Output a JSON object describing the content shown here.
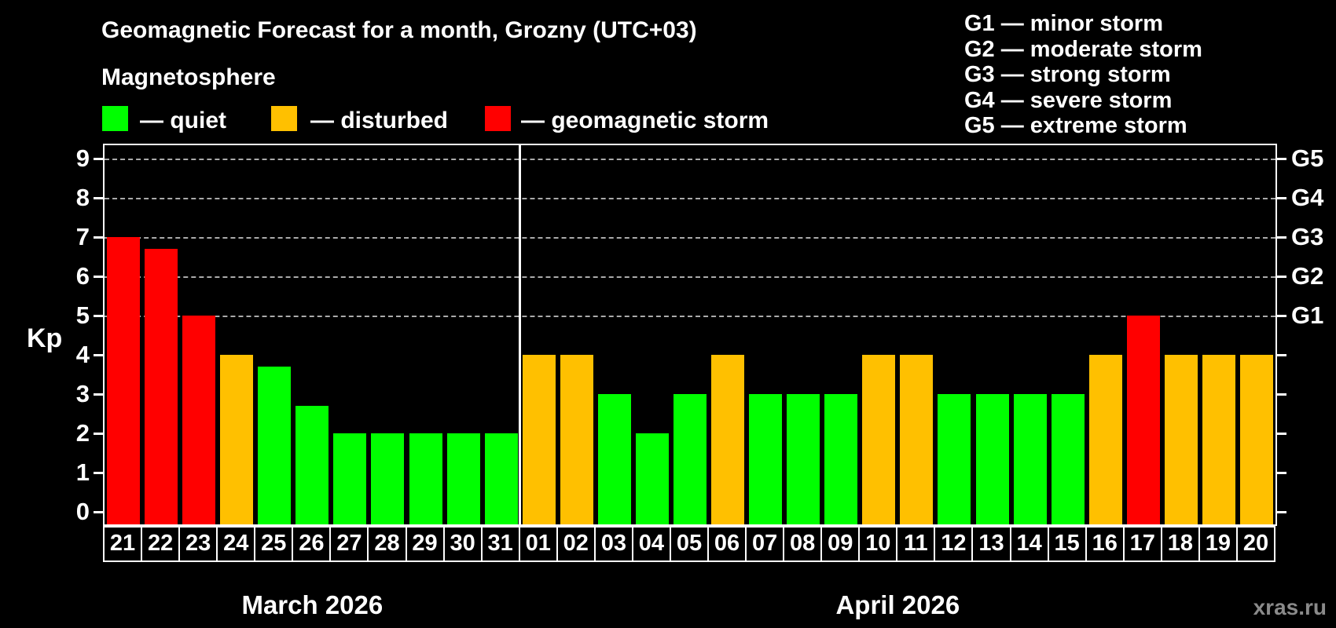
{
  "title": "Geomagnetic Forecast for a month, Grozny (UTC+03)",
  "subtitle": "Magnetosphere",
  "legend": {
    "items": [
      {
        "key": "quiet",
        "label": "— quiet"
      },
      {
        "key": "disturbed",
        "label": "— disturbed"
      },
      {
        "key": "storm",
        "label": "— geomagnetic storm"
      }
    ]
  },
  "g_scale_legend": [
    "G1 — minor storm",
    "G2 — moderate storm",
    "G3 — strong storm",
    "G4 — severe storm",
    "G5 — extreme storm"
  ],
  "watermark": "xras.ru",
  "colors": {
    "quiet": "#00ff00",
    "disturbed": "#ffc000",
    "storm": "#ff0000",
    "background": "#000000",
    "axis": "#ffffff",
    "grid": "#c8c8c8",
    "watermark": "#8a8a8a"
  },
  "chart_data": {
    "type": "bar",
    "title": "Geomagnetic Forecast for a month, Grozny (UTC+03)",
    "ylabel": "Kp",
    "ylim": [
      0,
      9.5
    ],
    "y_ticks": [
      0,
      1,
      2,
      3,
      4,
      5,
      6,
      7,
      8,
      9
    ],
    "gridlines_at_kp": [
      5,
      6,
      7,
      8,
      9
    ],
    "grid": "dashed horizontal at storm levels only",
    "legend_position": "top-left",
    "right_axis_labels": [
      {
        "kp": 5,
        "label": "G1"
      },
      {
        "kp": 6,
        "label": "G2"
      },
      {
        "kp": 7,
        "label": "G3"
      },
      {
        "kp": 8,
        "label": "G4"
      },
      {
        "kp": 9,
        "label": "G5"
      }
    ],
    "months": [
      {
        "label": "March 2026",
        "day_count": 11
      },
      {
        "label": "April 2026",
        "day_count": 20
      }
    ],
    "points": [
      {
        "day": "21",
        "month": "March 2026",
        "kp": 7.0,
        "condition": "storm"
      },
      {
        "day": "22",
        "month": "March 2026",
        "kp": 6.7,
        "condition": "storm"
      },
      {
        "day": "23",
        "month": "March 2026",
        "kp": 5.0,
        "condition": "storm"
      },
      {
        "day": "24",
        "month": "March 2026",
        "kp": 4.0,
        "condition": "disturbed"
      },
      {
        "day": "25",
        "month": "March 2026",
        "kp": 3.7,
        "condition": "quiet"
      },
      {
        "day": "26",
        "month": "March 2026",
        "kp": 2.7,
        "condition": "quiet"
      },
      {
        "day": "27",
        "month": "March 2026",
        "kp": 2.0,
        "condition": "quiet"
      },
      {
        "day": "28",
        "month": "March 2026",
        "kp": 2.0,
        "condition": "quiet"
      },
      {
        "day": "29",
        "month": "March 2026",
        "kp": 2.0,
        "condition": "quiet"
      },
      {
        "day": "30",
        "month": "March 2026",
        "kp": 2.0,
        "condition": "quiet"
      },
      {
        "day": "31",
        "month": "March 2026",
        "kp": 2.0,
        "condition": "quiet"
      },
      {
        "day": "01",
        "month": "April 2026",
        "kp": 4.0,
        "condition": "disturbed"
      },
      {
        "day": "02",
        "month": "April 2026",
        "kp": 4.0,
        "condition": "disturbed"
      },
      {
        "day": "03",
        "month": "April 2026",
        "kp": 3.0,
        "condition": "quiet"
      },
      {
        "day": "04",
        "month": "April 2026",
        "kp": 2.0,
        "condition": "quiet"
      },
      {
        "day": "05",
        "month": "April 2026",
        "kp": 3.0,
        "condition": "quiet"
      },
      {
        "day": "06",
        "month": "April 2026",
        "kp": 4.0,
        "condition": "disturbed"
      },
      {
        "day": "07",
        "month": "April 2026",
        "kp": 3.0,
        "condition": "quiet"
      },
      {
        "day": "08",
        "month": "April 2026",
        "kp": 3.0,
        "condition": "quiet"
      },
      {
        "day": "09",
        "month": "April 2026",
        "kp": 3.0,
        "condition": "quiet"
      },
      {
        "day": "10",
        "month": "April 2026",
        "kp": 4.0,
        "condition": "disturbed"
      },
      {
        "day": "11",
        "month": "April 2026",
        "kp": 4.0,
        "condition": "disturbed"
      },
      {
        "day": "12",
        "month": "April 2026",
        "kp": 3.0,
        "condition": "quiet"
      },
      {
        "day": "13",
        "month": "April 2026",
        "kp": 3.0,
        "condition": "quiet"
      },
      {
        "day": "14",
        "month": "April 2026",
        "kp": 3.0,
        "condition": "quiet"
      },
      {
        "day": "15",
        "month": "April 2026",
        "kp": 3.0,
        "condition": "quiet"
      },
      {
        "day": "16",
        "month": "April 2026",
        "kp": 4.0,
        "condition": "disturbed"
      },
      {
        "day": "17",
        "month": "April 2026",
        "kp": 5.0,
        "condition": "storm"
      },
      {
        "day": "18",
        "month": "April 2026",
        "kp": 4.0,
        "condition": "disturbed"
      },
      {
        "day": "19",
        "month": "April 2026",
        "kp": 4.0,
        "condition": "disturbed"
      },
      {
        "day": "20",
        "month": "April 2026",
        "kp": 4.0,
        "condition": "disturbed"
      }
    ]
  }
}
